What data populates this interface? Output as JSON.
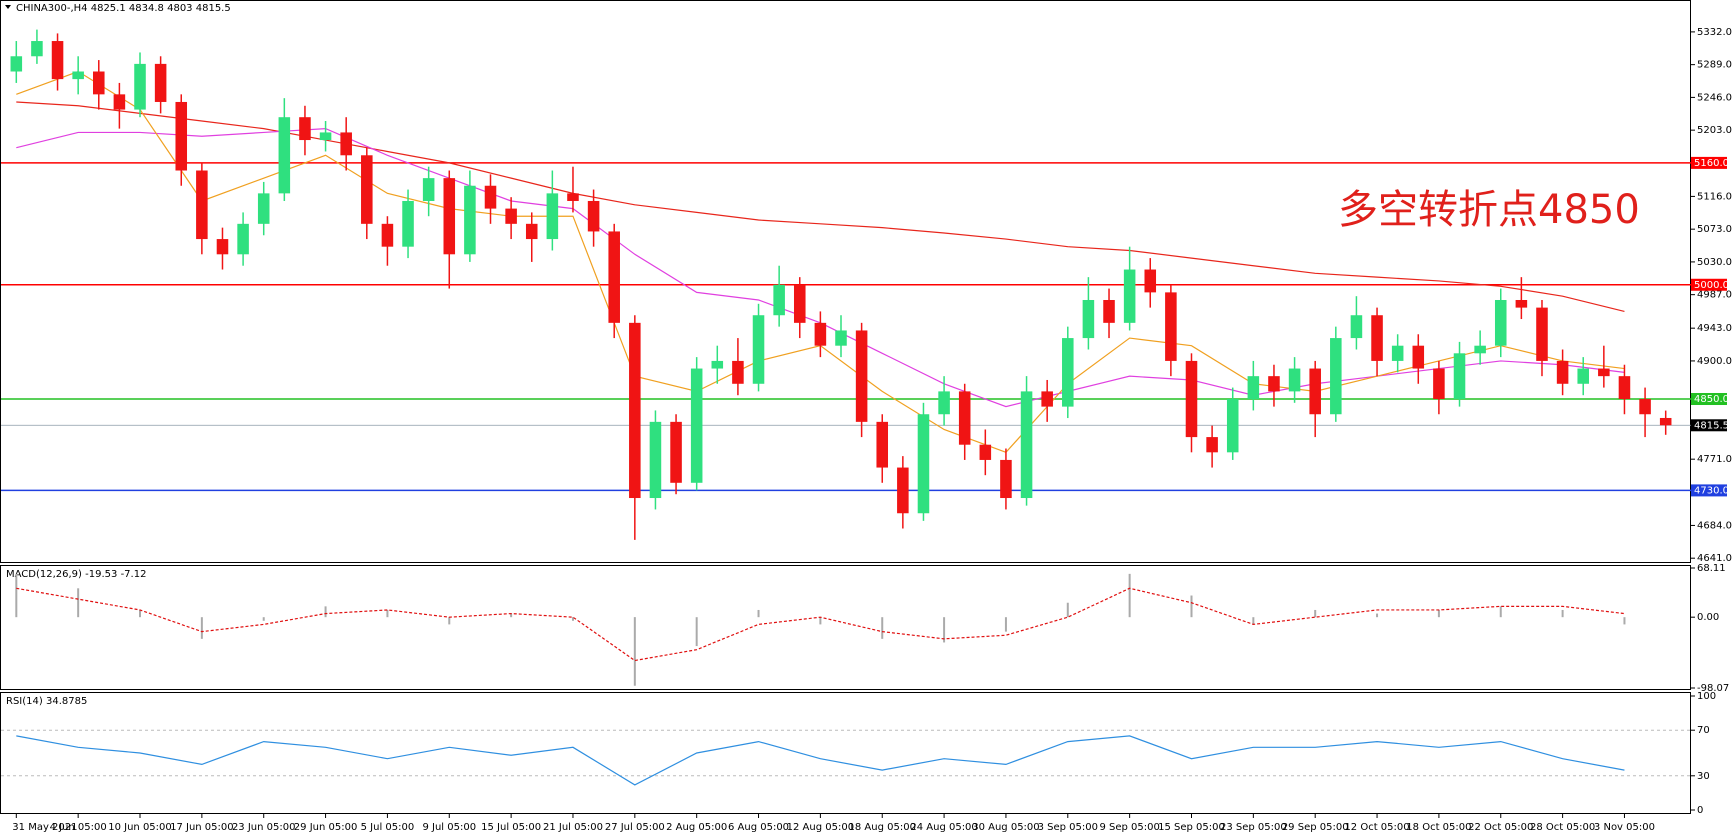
{
  "chart_data": {
    "type": "candlestick",
    "symbol": "CHINA300-,H4",
    "annotation": "多空转折点4850",
    "categories": [
      "31 May 2021",
      null,
      null,
      "4 Jun 05:00",
      null,
      null,
      "10 Jun 05:00",
      null,
      null,
      "17 Jun 05:00",
      null,
      null,
      "23 Jun 05:00",
      null,
      null,
      "29 Jun 05:00",
      null,
      null,
      "5 Jul 05:00",
      null,
      null,
      "9 Jul 05:00",
      null,
      null,
      "15 Jul 05:00",
      null,
      null,
      "21 Jul 05:00",
      null,
      null,
      "27 Jul 05:00",
      null,
      null,
      "2 Aug 05:00",
      null,
      null,
      "6 Aug 05:00",
      null,
      null,
      "12 Aug 05:00",
      null,
      null,
      "18 Aug 05:00",
      null,
      null,
      "24 Aug 05:00",
      null,
      null,
      "30 Aug 05:00",
      null,
      null,
      "3 Sep 05:00",
      null,
      null,
      "9 Sep 05:00",
      null,
      null,
      "15 Sep 05:00",
      null,
      null,
      "23 Sep 05:00",
      null,
      null,
      "29 Sep 05:00",
      null,
      null,
      "12 Oct 05:00",
      null,
      null,
      "18 Oct 05:00",
      null,
      null,
      "22 Oct 05:00",
      null,
      null,
      "28 Oct 05:00",
      null,
      null,
      "3 Nov 05:00",
      null,
      null
    ],
    "ohlc": [
      [
        5280,
        5320,
        5265,
        5300
      ],
      [
        5300,
        5335,
        5290,
        5320
      ],
      [
        5320,
        5330,
        5255,
        5270
      ],
      [
        5270,
        5300,
        5250,
        5280
      ],
      [
        5280,
        5295,
        5230,
        5250
      ],
      [
        5250,
        5265,
        5205,
        5230
      ],
      [
        5230,
        5305,
        5220,
        5290
      ],
      [
        5290,
        5300,
        5225,
        5240
      ],
      [
        5240,
        5250,
        5130,
        5150
      ],
      [
        5150,
        5160,
        5040,
        5060
      ],
      [
        5060,
        5075,
        5020,
        5040
      ],
      [
        5040,
        5095,
        5025,
        5080
      ],
      [
        5080,
        5135,
        5065,
        5120
      ],
      [
        5120,
        5245,
        5110,
        5220
      ],
      [
        5220,
        5235,
        5170,
        5190
      ],
      [
        5190,
        5215,
        5175,
        5200
      ],
      [
        5200,
        5220,
        5150,
        5170
      ],
      [
        5170,
        5180,
        5060,
        5080
      ],
      [
        5080,
        5090,
        5025,
        5050
      ],
      [
        5050,
        5125,
        5035,
        5110
      ],
      [
        5110,
        5155,
        5090,
        5140
      ],
      [
        5140,
        5150,
        4995,
        5040
      ],
      [
        5040,
        5150,
        5030,
        5130
      ],
      [
        5130,
        5145,
        5080,
        5100
      ],
      [
        5100,
        5115,
        5060,
        5080
      ],
      [
        5080,
        5095,
        5030,
        5060
      ],
      [
        5060,
        5150,
        5045,
        5120
      ],
      [
        5120,
        5155,
        5095,
        5110
      ],
      [
        5110,
        5125,
        5050,
        5070
      ],
      [
        5070,
        5080,
        4930,
        4950
      ],
      [
        4950,
        4960,
        4665,
        4720
      ],
      [
        4720,
        4835,
        4705,
        4820
      ],
      [
        4820,
        4830,
        4725,
        4740
      ],
      [
        4740,
        4905,
        4730,
        4890
      ],
      [
        4890,
        4920,
        4870,
        4900
      ],
      [
        4900,
        4930,
        4855,
        4870
      ],
      [
        4870,
        4975,
        4860,
        4960
      ],
      [
        4960,
        5025,
        4945,
        5000
      ],
      [
        5000,
        5010,
        4930,
        4950
      ],
      [
        4950,
        4965,
        4905,
        4920
      ],
      [
        4920,
        4960,
        4905,
        4940
      ],
      [
        4940,
        4950,
        4800,
        4820
      ],
      [
        4820,
        4830,
        4740,
        4760
      ],
      [
        4760,
        4775,
        4680,
        4700
      ],
      [
        4700,
        4845,
        4690,
        4830
      ],
      [
        4830,
        4880,
        4815,
        4860
      ],
      [
        4860,
        4870,
        4770,
        4790
      ],
      [
        4790,
        4810,
        4750,
        4770
      ],
      [
        4770,
        4785,
        4705,
        4720
      ],
      [
        4720,
        4880,
        4710,
        4860
      ],
      [
        4860,
        4875,
        4820,
        4840
      ],
      [
        4840,
        4945,
        4825,
        4930
      ],
      [
        4930,
        5010,
        4915,
        4980
      ],
      [
        4980,
        4995,
        4930,
        4950
      ],
      [
        4950,
        5050,
        4940,
        5020
      ],
      [
        5020,
        5035,
        4970,
        4990
      ],
      [
        4990,
        5000,
        4880,
        4900
      ],
      [
        4900,
        4910,
        4780,
        4800
      ],
      [
        4800,
        4815,
        4760,
        4780
      ],
      [
        4780,
        4865,
        4770,
        4850
      ],
      [
        4850,
        4900,
        4835,
        4880
      ],
      [
        4880,
        4895,
        4840,
        4860
      ],
      [
        4860,
        4905,
        4845,
        4890
      ],
      [
        4890,
        4900,
        4800,
        4830
      ],
      [
        4830,
        4945,
        4820,
        4930
      ],
      [
        4930,
        4985,
        4915,
        4960
      ],
      [
        4960,
        4970,
        4880,
        4900
      ],
      [
        4900,
        4935,
        4885,
        4920
      ],
      [
        4920,
        4935,
        4870,
        4890
      ],
      [
        4890,
        4900,
        4830,
        4850
      ],
      [
        4850,
        4925,
        4840,
        4910
      ],
      [
        4910,
        4940,
        4895,
        4920
      ],
      [
        4920,
        4995,
        4905,
        4980
      ],
      [
        4980,
        5010,
        4955,
        4970
      ],
      [
        4970,
        4980,
        4880,
        4900
      ],
      [
        4900,
        4915,
        4855,
        4870
      ],
      [
        4870,
        4905,
        4855,
        4890
      ],
      [
        4890,
        4920,
        4865,
        4880
      ],
      [
        4880,
        4895,
        4830,
        4850
      ],
      [
        4850,
        4865,
        4800,
        4830
      ],
      [
        4825.1,
        4834.8,
        4803.0,
        4815.5
      ]
    ],
    "up_color": "#2fe07f",
    "down_color": "#f01414",
    "overlays": [
      {
        "color": "#e8261c",
        "values": [
          5240,
          5235,
          5225,
          5215,
          5205,
          5190,
          5175,
          5160,
          5140,
          5120,
          5105,
          5095,
          5085,
          5080,
          5075,
          5068,
          5060,
          5050,
          5045,
          5035,
          5025,
          5015,
          5010,
          5005,
          4998,
          4985,
          4965
        ]
      },
      {
        "color": "#e040e0",
        "values": [
          5180,
          5200,
          5200,
          5195,
          5200,
          5205,
          5170,
          5140,
          5110,
          5100,
          5040,
          4990,
          4980,
          4950,
          4910,
          4870,
          4840,
          4860,
          4880,
          4875,
          4855,
          4870,
          4880,
          4890,
          4900,
          4895,
          4885
        ]
      },
      {
        "color": "#f0a020",
        "values": [
          5250,
          5280,
          5230,
          5110,
          5140,
          5170,
          5120,
          5100,
          5090,
          5090,
          4880,
          4860,
          4900,
          4920,
          4860,
          4810,
          4780,
          4870,
          4930,
          4920,
          4870,
          4860,
          4880,
          4900,
          4920,
          4900,
          4890
        ]
      }
    ],
    "ylim": [
      4636,
      5366
    ],
    "yticks": [
      {
        "value": 5332,
        "label": "5332.0"
      },
      {
        "value": 5289,
        "label": "5289.0"
      },
      {
        "value": 5246,
        "label": "5246.0"
      },
      {
        "value": 5203,
        "label": "5203.0"
      },
      {
        "value": 5116,
        "label": "5116.0"
      },
      {
        "value": 5073,
        "label": "5073.0"
      },
      {
        "value": 5030,
        "label": "5030.0"
      },
      {
        "value": 4987,
        "label": "4987.0"
      },
      {
        "value": 4943,
        "label": "4943.0"
      },
      {
        "value": 4900,
        "label": "4900.0"
      },
      {
        "value": 4771,
        "label": "4771.0"
      },
      {
        "value": 4684,
        "label": "4684.0"
      },
      {
        "value": 4641,
        "label": "4641.0"
      }
    ],
    "levels": [
      {
        "value": 5160,
        "label": "5160.0",
        "color": "#ff0000"
      },
      {
        "value": 5000,
        "label": "5000.0",
        "color": "#ff0000"
      },
      {
        "value": 4850,
        "label": "4850.0",
        "color": "#22c022"
      },
      {
        "value": 4730,
        "label": "4730.0",
        "color": "#2040e0"
      }
    ],
    "last_price": 4815.5,
    "macd": {
      "name": "MACD(12,26,9)",
      "readings": [
        -19.53,
        -7.12
      ],
      "histogram": [
        60,
        40,
        10,
        -30,
        -5,
        15,
        10,
        -10,
        5,
        -5,
        -95,
        -40,
        10,
        -10,
        -30,
        -35,
        -20,
        20,
        60,
        30,
        -10,
        10,
        5,
        10,
        15,
        10,
        -10
      ],
      "signal": [
        40,
        25,
        10,
        -20,
        -10,
        5,
        10,
        0,
        5,
        0,
        -60,
        -45,
        -10,
        0,
        -20,
        -30,
        -25,
        0,
        40,
        20,
        -10,
        0,
        10,
        10,
        15,
        15,
        5
      ],
      "ylim": [
        -98.07,
        68.11
      ],
      "yticks": [
        -98.07,
        {
          "value": 0,
          "label": "0.00"
        },
        68.11
      ]
    },
    "rsi": {
      "name": "RSI(14)",
      "reading": 34.8785,
      "color": "#2f8fe0",
      "values": [
        65,
        55,
        50,
        40,
        60,
        55,
        45,
        55,
        48,
        55,
        22,
        50,
        60,
        45,
        35,
        45,
        40,
        60,
        65,
        45,
        55,
        55,
        60,
        55,
        60,
        45,
        35
      ],
      "ylim": [
        0,
        100
      ],
      "yticks": [
        0,
        30,
        70,
        100
      ]
    }
  }
}
